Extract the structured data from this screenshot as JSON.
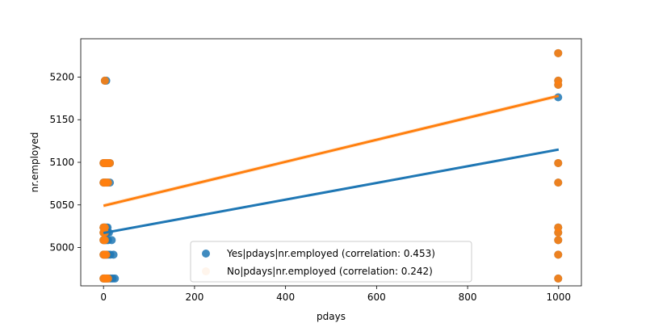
{
  "chart_data": {
    "type": "scatter",
    "xlabel": "pdays",
    "ylabel": "nr.employed",
    "xlim": [
      -50,
      1050
    ],
    "ylim": [
      4955,
      5245
    ],
    "x_ticks": [
      0,
      200,
      400,
      600,
      800,
      1000
    ],
    "y_ticks": [
      5000,
      5050,
      5100,
      5150,
      5200
    ],
    "legend_position": "lower-center",
    "grid": false,
    "series": [
      {
        "name": "Yes|pdays|nr.employed (correlation: 0.453)",
        "color": "#1f77b4",
        "points": [
          [
            0,
            4963.6
          ],
          [
            3,
            4963.6
          ],
          [
            6,
            4963.6
          ],
          [
            10,
            4963.6
          ],
          [
            15,
            4963.6
          ],
          [
            20,
            4963.6
          ],
          [
            25,
            4963.6
          ],
          [
            0,
            4991.6
          ],
          [
            3,
            4991.6
          ],
          [
            6,
            4991.6
          ],
          [
            10,
            4991.6
          ],
          [
            15,
            4991.6
          ],
          [
            22,
            4991.6
          ],
          [
            0,
            5008.7
          ],
          [
            3,
            5008.7
          ],
          [
            6,
            5008.7
          ],
          [
            10,
            5008.7
          ],
          [
            18,
            5008.7
          ],
          [
            0,
            5017.5
          ],
          [
            4,
            5017.5
          ],
          [
            8,
            5017.5
          ],
          [
            12,
            5017.5
          ],
          [
            0,
            5023.5
          ],
          [
            3,
            5023.5
          ],
          [
            6,
            5023.5
          ],
          [
            9,
            5023.5
          ],
          [
            0,
            5076.2
          ],
          [
            3,
            5076.2
          ],
          [
            6,
            5076.2
          ],
          [
            10,
            5076.2
          ],
          [
            14,
            5076.2
          ],
          [
            0,
            5099.1
          ],
          [
            3,
            5099.1
          ],
          [
            6,
            5099.1
          ],
          [
            10,
            5099.1
          ],
          [
            14,
            5099.1
          ],
          [
            3,
            5195.8
          ],
          [
            6,
            5195.8
          ],
          [
            999,
            4963.6
          ],
          [
            999,
            4991.6
          ],
          [
            999,
            5008.7
          ],
          [
            999,
            5017.5
          ],
          [
            999,
            5023.5
          ],
          [
            999,
            5076.2
          ],
          [
            999,
            5099.1
          ],
          [
            999,
            5176.3
          ],
          [
            999,
            5191.0
          ],
          [
            999,
            5195.8
          ],
          [
            999,
            5228.1
          ]
        ],
        "fit": [
          [
            0,
            5017
          ],
          [
            1000,
            5115
          ]
        ]
      },
      {
        "name": "No|pdays|nr.employed (correlation: 0.242)",
        "color": "#ff7f0e",
        "points": [
          [
            0,
            4963.6
          ],
          [
            3,
            4963.6
          ],
          [
            6,
            4963.6
          ],
          [
            10,
            4963.6
          ],
          [
            0,
            4991.6
          ],
          [
            3,
            4991.6
          ],
          [
            6,
            4991.6
          ],
          [
            0,
            5008.7
          ],
          [
            3,
            5008.7
          ],
          [
            0,
            5017.5
          ],
          [
            3,
            5017.5
          ],
          [
            0,
            5023.5
          ],
          [
            3,
            5023.5
          ],
          [
            0,
            5076.2
          ],
          [
            3,
            5076.2
          ],
          [
            6,
            5076.2
          ],
          [
            10,
            5076.2
          ],
          [
            0,
            5099.1
          ],
          [
            3,
            5099.1
          ],
          [
            6,
            5099.1
          ],
          [
            10,
            5099.1
          ],
          [
            14,
            5099.1
          ],
          [
            3,
            5195.8
          ],
          [
            999,
            4963.6
          ],
          [
            999,
            4991.6
          ],
          [
            999,
            5008.7
          ],
          [
            999,
            5017.5
          ],
          [
            999,
            5023.5
          ],
          [
            999,
            5076.2
          ],
          [
            999,
            5099.1
          ],
          [
            999,
            5191.0
          ],
          [
            999,
            5195.8
          ],
          [
            999,
            5228.1
          ]
        ],
        "fit": [
          [
            0,
            5049
          ],
          [
            1000,
            5178
          ]
        ]
      }
    ]
  }
}
